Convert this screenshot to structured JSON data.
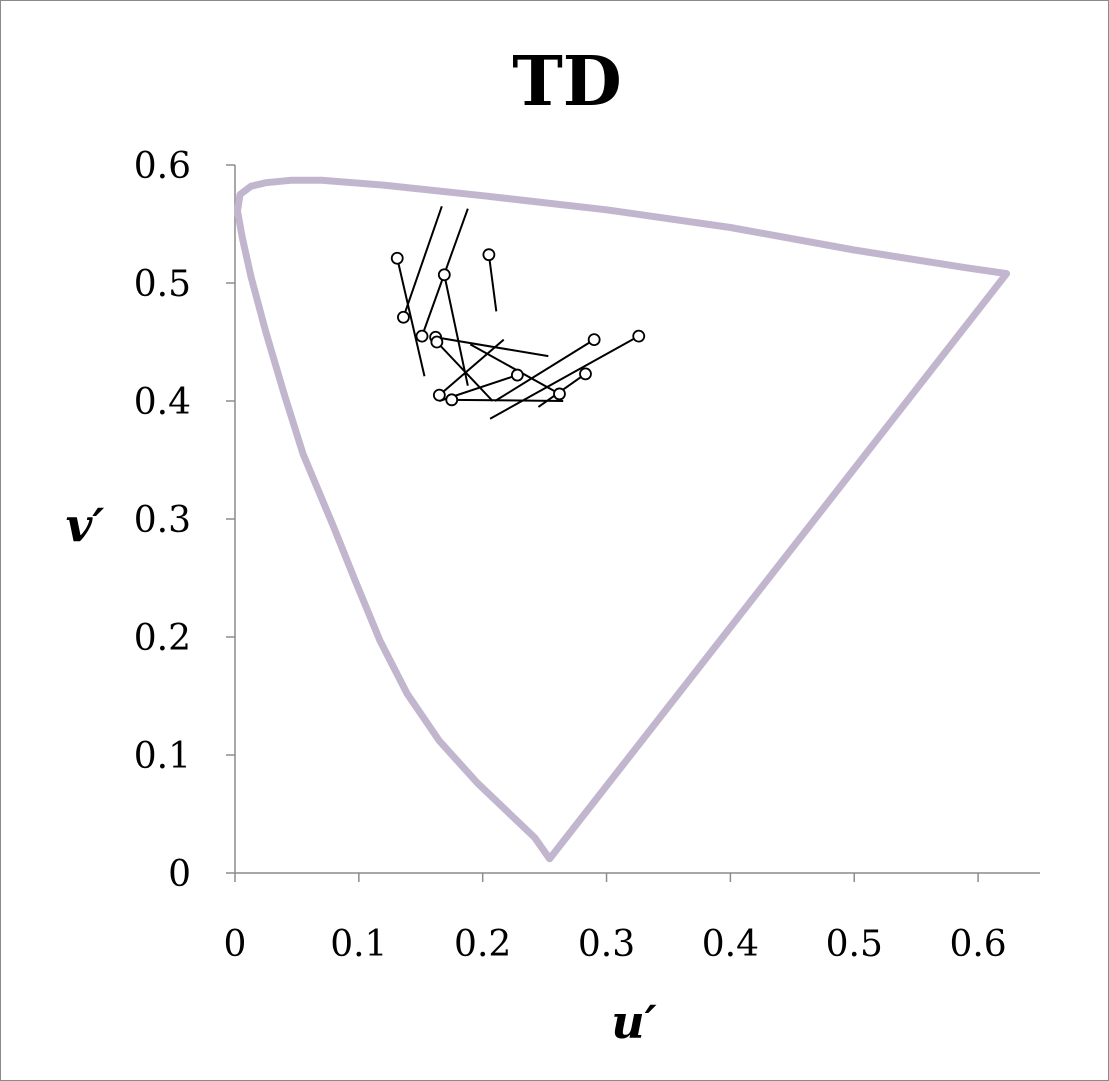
{
  "chart_data": {
    "type": "scatter",
    "title": "TD",
    "xlabel": "u′",
    "ylabel": "v′",
    "xlim": [
      0,
      0.65
    ],
    "ylim": [
      0,
      0.6
    ],
    "xticks": [
      "0",
      "0.1",
      "0.2",
      "0.3",
      "0.4",
      "0.5",
      "0.6"
    ],
    "xtick_values": [
      0,
      0.1,
      0.2,
      0.3,
      0.4,
      0.5,
      0.6
    ],
    "yticks": [
      "0",
      "0.1",
      "0.2",
      "0.3",
      "0.4",
      "0.5",
      "0.6"
    ],
    "ytick_values": [
      0,
      0.1,
      0.2,
      0.3,
      0.4,
      0.5,
      0.6
    ],
    "grid": false,
    "locus_color": "#c2b6ce",
    "marker_color": "#000000",
    "spectrum_locus": [
      [
        0.254,
        0.012
      ],
      [
        0.242,
        0.03
      ],
      [
        0.222,
        0.05
      ],
      [
        0.196,
        0.076
      ],
      [
        0.165,
        0.112
      ],
      [
        0.139,
        0.152
      ],
      [
        0.117,
        0.197
      ],
      [
        0.097,
        0.248
      ],
      [
        0.079,
        0.295
      ],
      [
        0.055,
        0.355
      ],
      [
        0.04,
        0.405
      ],
      [
        0.025,
        0.458
      ],
      [
        0.013,
        0.505
      ],
      [
        0.006,
        0.538
      ],
      [
        0.002,
        0.561
      ],
      [
        0.004,
        0.575
      ],
      [
        0.013,
        0.582
      ],
      [
        0.025,
        0.585
      ],
      [
        0.045,
        0.587
      ],
      [
        0.07,
        0.587
      ],
      [
        0.12,
        0.583
      ],
      [
        0.2,
        0.574
      ],
      [
        0.3,
        0.562
      ],
      [
        0.4,
        0.547
      ],
      [
        0.5,
        0.528
      ],
      [
        0.59,
        0.513
      ],
      [
        0.623,
        0.508
      ]
    ],
    "vectors": [
      {
        "x": 0.131,
        "y": 0.521,
        "x2": 0.153,
        "y2": 0.421
      },
      {
        "x": 0.136,
        "y": 0.471,
        "x2": 0.167,
        "y2": 0.565
      },
      {
        "x": 0.151,
        "y": 0.455,
        "x2": 0.188,
        "y2": 0.563
      },
      {
        "x": 0.162,
        "y": 0.454,
        "x2": 0.253,
        "y2": 0.438
      },
      {
        "x": 0.163,
        "y": 0.45,
        "x2": 0.208,
        "y2": 0.4
      },
      {
        "x": 0.169,
        "y": 0.507,
        "x2": 0.188,
        "y2": 0.413
      },
      {
        "x": 0.205,
        "y": 0.524,
        "x2": 0.211,
        "y2": 0.476
      },
      {
        "x": 0.165,
        "y": 0.405,
        "x2": 0.217,
        "y2": 0.452
      },
      {
        "x": 0.175,
        "y": 0.401,
        "x2": 0.265,
        "y2": 0.4
      },
      {
        "x": 0.228,
        "y": 0.422,
        "x2": 0.165,
        "y2": 0.4
      },
      {
        "x": 0.262,
        "y": 0.406,
        "x2": 0.19,
        "y2": 0.448
      },
      {
        "x": 0.29,
        "y": 0.452,
        "x2": 0.21,
        "y2": 0.4
      },
      {
        "x": 0.283,
        "y": 0.423,
        "x2": 0.245,
        "y2": 0.395
      },
      {
        "x": 0.326,
        "y": 0.455,
        "x2": 0.206,
        "y2": 0.385
      }
    ]
  }
}
